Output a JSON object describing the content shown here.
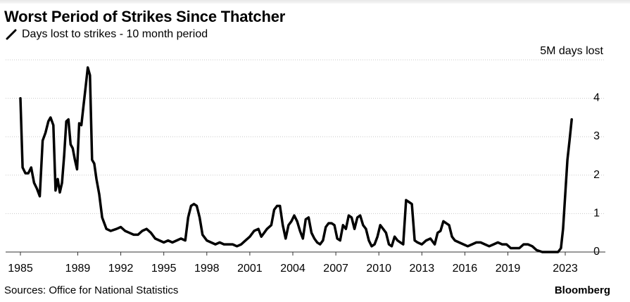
{
  "header": {
    "title": "Worst Period of Strikes Since Thatcher",
    "legend_label": "Days lost to strikes - 10 month period",
    "unit_label": "5M days lost"
  },
  "footer": {
    "source": "Sources: Office for National Statistics",
    "brand": "Bloomberg"
  },
  "chart_data": {
    "type": "line",
    "title": "Worst Period of Strikes Since Thatcher",
    "series": [
      {
        "name": "Days lost to strikes - 10 month period",
        "color": "#000000",
        "points": [
          [
            1985.0,
            4.0
          ],
          [
            1985.15,
            2.2
          ],
          [
            1985.35,
            2.05
          ],
          [
            1985.55,
            2.05
          ],
          [
            1985.75,
            2.2
          ],
          [
            1985.95,
            1.8
          ],
          [
            1986.15,
            1.65
          ],
          [
            1986.35,
            1.45
          ],
          [
            1986.55,
            2.9
          ],
          [
            1986.75,
            3.1
          ],
          [
            1986.95,
            3.4
          ],
          [
            1987.1,
            3.5
          ],
          [
            1987.3,
            3.3
          ],
          [
            1987.45,
            1.6
          ],
          [
            1987.6,
            1.9
          ],
          [
            1987.75,
            1.55
          ],
          [
            1987.9,
            1.8
          ],
          [
            1988.05,
            2.5
          ],
          [
            1988.2,
            3.4
          ],
          [
            1988.35,
            3.45
          ],
          [
            1988.5,
            2.8
          ],
          [
            1988.65,
            2.7
          ],
          [
            1988.8,
            2.4
          ],
          [
            1988.95,
            2.15
          ],
          [
            1989.1,
            3.35
          ],
          [
            1989.25,
            3.3
          ],
          [
            1989.4,
            3.8
          ],
          [
            1989.55,
            4.3
          ],
          [
            1989.7,
            4.8
          ],
          [
            1989.85,
            4.6
          ],
          [
            1990.0,
            2.4
          ],
          [
            1990.15,
            2.3
          ],
          [
            1990.3,
            1.9
          ],
          [
            1990.5,
            1.5
          ],
          [
            1990.7,
            0.9
          ],
          [
            1991.0,
            0.6
          ],
          [
            1991.3,
            0.55
          ],
          [
            1991.7,
            0.6
          ],
          [
            1992.0,
            0.65
          ],
          [
            1992.3,
            0.55
          ],
          [
            1992.6,
            0.5
          ],
          [
            1992.9,
            0.45
          ],
          [
            1993.2,
            0.45
          ],
          [
            1993.5,
            0.55
          ],
          [
            1993.8,
            0.6
          ],
          [
            1994.1,
            0.5
          ],
          [
            1994.4,
            0.35
          ],
          [
            1994.7,
            0.3
          ],
          [
            1995.0,
            0.25
          ],
          [
            1995.3,
            0.3
          ],
          [
            1995.6,
            0.25
          ],
          [
            1995.9,
            0.3
          ],
          [
            1996.2,
            0.35
          ],
          [
            1996.5,
            0.3
          ],
          [
            1996.7,
            0.9
          ],
          [
            1996.9,
            1.2
          ],
          [
            1997.1,
            1.25
          ],
          [
            1997.3,
            1.2
          ],
          [
            1997.5,
            0.9
          ],
          [
            1997.7,
            0.45
          ],
          [
            1998.0,
            0.3
          ],
          [
            1998.3,
            0.25
          ],
          [
            1998.6,
            0.2
          ],
          [
            1998.9,
            0.25
          ],
          [
            1999.2,
            0.2
          ],
          [
            1999.5,
            0.2
          ],
          [
            1999.8,
            0.2
          ],
          [
            2000.1,
            0.15
          ],
          [
            2000.4,
            0.2
          ],
          [
            2000.7,
            0.3
          ],
          [
            2001.0,
            0.4
          ],
          [
            2001.3,
            0.55
          ],
          [
            2001.6,
            0.6
          ],
          [
            2001.8,
            0.4
          ],
          [
            2002.0,
            0.5
          ],
          [
            2002.2,
            0.6
          ],
          [
            2002.5,
            0.7
          ],
          [
            2002.7,
            1.1
          ],
          [
            2002.9,
            1.2
          ],
          [
            2003.1,
            1.2
          ],
          [
            2003.3,
            0.7
          ],
          [
            2003.5,
            0.35
          ],
          [
            2003.7,
            0.7
          ],
          [
            2003.9,
            0.8
          ],
          [
            2004.1,
            0.95
          ],
          [
            2004.3,
            0.8
          ],
          [
            2004.5,
            0.55
          ],
          [
            2004.7,
            0.35
          ],
          [
            2004.9,
            0.85
          ],
          [
            2005.1,
            0.9
          ],
          [
            2005.3,
            0.5
          ],
          [
            2005.5,
            0.35
          ],
          [
            2005.7,
            0.25
          ],
          [
            2005.9,
            0.2
          ],
          [
            2006.1,
            0.3
          ],
          [
            2006.3,
            0.65
          ],
          [
            2006.5,
            0.75
          ],
          [
            2006.7,
            0.75
          ],
          [
            2006.9,
            0.7
          ],
          [
            2007.1,
            0.35
          ],
          [
            2007.3,
            0.3
          ],
          [
            2007.5,
            0.7
          ],
          [
            2007.7,
            0.6
          ],
          [
            2007.9,
            0.95
          ],
          [
            2008.1,
            0.9
          ],
          [
            2008.3,
            0.6
          ],
          [
            2008.5,
            0.9
          ],
          [
            2008.7,
            0.95
          ],
          [
            2008.9,
            0.7
          ],
          [
            2009.1,
            0.6
          ],
          [
            2009.3,
            0.3
          ],
          [
            2009.5,
            0.15
          ],
          [
            2009.7,
            0.2
          ],
          [
            2009.9,
            0.4
          ],
          [
            2010.1,
            0.7
          ],
          [
            2010.3,
            0.6
          ],
          [
            2010.5,
            0.5
          ],
          [
            2010.7,
            0.2
          ],
          [
            2010.9,
            0.15
          ],
          [
            2011.1,
            0.4
          ],
          [
            2011.3,
            0.3
          ],
          [
            2011.5,
            0.25
          ],
          [
            2011.7,
            0.2
          ],
          [
            2011.9,
            1.35
          ],
          [
            2012.1,
            1.3
          ],
          [
            2012.3,
            1.25
          ],
          [
            2012.5,
            0.3
          ],
          [
            2012.7,
            0.25
          ],
          [
            2013.0,
            0.2
          ],
          [
            2013.3,
            0.3
          ],
          [
            2013.6,
            0.35
          ],
          [
            2013.9,
            0.2
          ],
          [
            2014.1,
            0.5
          ],
          [
            2014.3,
            0.55
          ],
          [
            2014.5,
            0.8
          ],
          [
            2014.7,
            0.75
          ],
          [
            2014.9,
            0.7
          ],
          [
            2015.1,
            0.4
          ],
          [
            2015.3,
            0.3
          ],
          [
            2015.6,
            0.25
          ],
          [
            2015.9,
            0.2
          ],
          [
            2016.2,
            0.15
          ],
          [
            2016.5,
            0.2
          ],
          [
            2016.8,
            0.25
          ],
          [
            2017.1,
            0.25
          ],
          [
            2017.4,
            0.2
          ],
          [
            2017.7,
            0.15
          ],
          [
            2018.0,
            0.2
          ],
          [
            2018.3,
            0.25
          ],
          [
            2018.6,
            0.2
          ],
          [
            2018.9,
            0.2
          ],
          [
            2019.2,
            0.1
          ],
          [
            2019.5,
            0.1
          ],
          [
            2019.8,
            0.1
          ],
          [
            2020.1,
            0.2
          ],
          [
            2020.4,
            0.2
          ],
          [
            2020.7,
            0.15
          ],
          [
            2021.0,
            0.05
          ],
          [
            2021.4,
            0.0
          ],
          [
            2021.8,
            0.0
          ],
          [
            2022.2,
            0.0
          ],
          [
            2022.5,
            0.0
          ],
          [
            2022.7,
            0.1
          ],
          [
            2022.85,
            0.6
          ],
          [
            2023.0,
            1.5
          ],
          [
            2023.15,
            2.4
          ],
          [
            2023.3,
            2.9
          ],
          [
            2023.45,
            3.45
          ]
        ]
      }
    ],
    "xlim": [
      1984.6,
      2024.8
    ],
    "ylim": [
      0,
      5
    ],
    "x_ticks": [
      "1985",
      "1989",
      "1992",
      "1995",
      "1998",
      "2001",
      "2004",
      "2007",
      "2010",
      "2013",
      "2016",
      "2019",
      "2023"
    ],
    "x_tick_values": [
      1985,
      1989,
      1992,
      1995,
      1998,
      2001,
      2004,
      2007,
      2010,
      2013,
      2016,
      2019,
      2023
    ],
    "y_ticks": [
      0,
      1,
      2,
      3,
      4
    ],
    "ylabel": "5M days lost",
    "grid": "horizontal dotted",
    "y_axis_side": "right"
  }
}
